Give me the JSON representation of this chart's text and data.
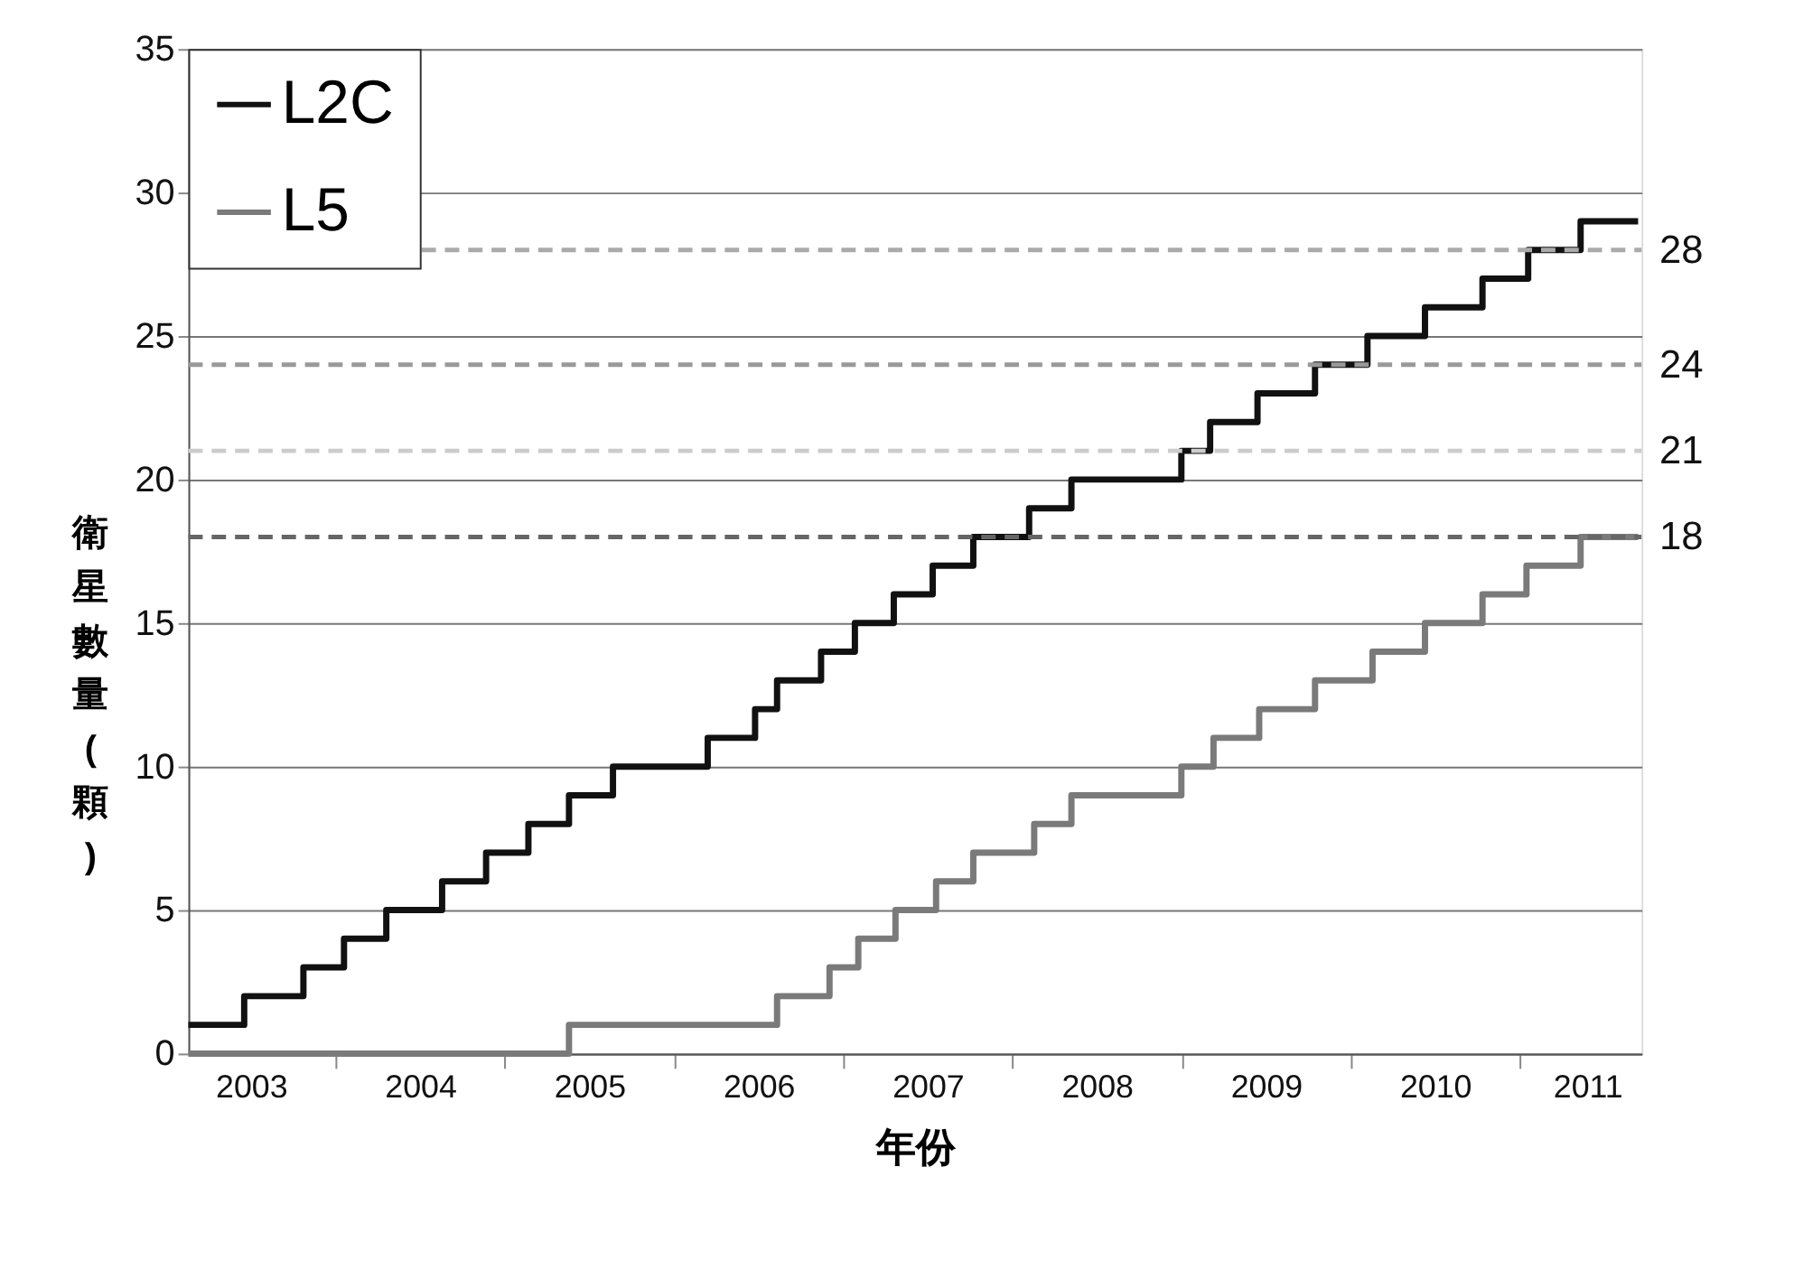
{
  "chart_data": {
    "type": "step",
    "xlabel": "年份",
    "ylabel": "衛星數量(顆)",
    "xlim": [
      2003.13,
      2011.72
    ],
    "ylim": [
      0,
      35
    ],
    "yticks": [
      0,
      5,
      10,
      15,
      20,
      25,
      30,
      35
    ],
    "xticks": [
      {
        "value": 2004,
        "label": null
      },
      {
        "value": 2005,
        "label": null
      },
      {
        "value": 2006,
        "label": null
      },
      {
        "value": 2007,
        "label": null
      },
      {
        "value": 2008,
        "label": null
      },
      {
        "value": 2009,
        "label": null
      },
      {
        "value": 2010,
        "label": null
      },
      {
        "value": 2011,
        "label": null
      },
      {
        "value": 2003.5,
        "label": "2003"
      },
      {
        "value": 2004.5,
        "label": "2004"
      },
      {
        "value": 2005.5,
        "label": "2005"
      },
      {
        "value": 2006.5,
        "label": "2006"
      },
      {
        "value": 2007.5,
        "label": "2007"
      },
      {
        "value": 2008.5,
        "label": "2008"
      },
      {
        "value": 2009.5,
        "label": "2009"
      },
      {
        "value": 2010.5,
        "label": "2010"
      },
      {
        "value": 2011.4,
        "label": "2011"
      }
    ],
    "grid": "y",
    "legend": "top left",
    "line_style": "solid",
    "series": [
      {
        "name": "L2C",
        "color": "#111111",
        "x": [
          2003.13,
          2003.46,
          2003.81,
          2004.05,
          2004.3,
          2004.63,
          2004.89,
          2005.14,
          2005.38,
          2005.64,
          2006.2,
          2006.48,
          2006.61,
          2006.87,
          2007.07,
          2007.3,
          2007.53,
          2007.77,
          2008.1,
          2008.35,
          2009.0,
          2009.17,
          2009.45,
          2009.79,
          2010.1,
          2010.44,
          2010.78,
          2011.05,
          2011.36,
          2011.7
        ],
        "values": [
          1,
          2,
          3,
          4,
          5,
          6,
          7,
          8,
          9,
          10,
          11,
          12,
          13,
          14,
          15,
          16,
          17,
          18,
          19,
          20,
          21,
          22,
          23,
          24,
          25,
          26,
          27,
          28,
          29,
          29
        ]
      },
      {
        "name": "L5",
        "color": "#7a7a7a",
        "x": [
          2003.13,
          2005.38,
          2006.61,
          2006.92,
          2007.09,
          2007.31,
          2007.55,
          2007.77,
          2008.13,
          2008.35,
          2009.0,
          2009.19,
          2009.46,
          2009.79,
          2010.13,
          2010.44,
          2010.78,
          2011.04,
          2011.36,
          2011.7
        ],
        "values": [
          0,
          1,
          2,
          3,
          4,
          5,
          6,
          7,
          8,
          9,
          10,
          11,
          12,
          13,
          14,
          15,
          16,
          17,
          18,
          18
        ]
      }
    ],
    "ref_lines": [
      {
        "axis": "y",
        "value": 28,
        "label": "28",
        "color": "#aaaaaa",
        "line_style": "dashed"
      },
      {
        "axis": "y",
        "value": 24,
        "label": "24",
        "color": "#999999",
        "line_style": "dashed"
      },
      {
        "axis": "y",
        "value": 21,
        "label": "21",
        "color": "#cccccc",
        "line_style": "dashed"
      },
      {
        "axis": "y",
        "value": 18,
        "label": "18",
        "color": "#666666",
        "line_style": "dashed"
      }
    ]
  }
}
